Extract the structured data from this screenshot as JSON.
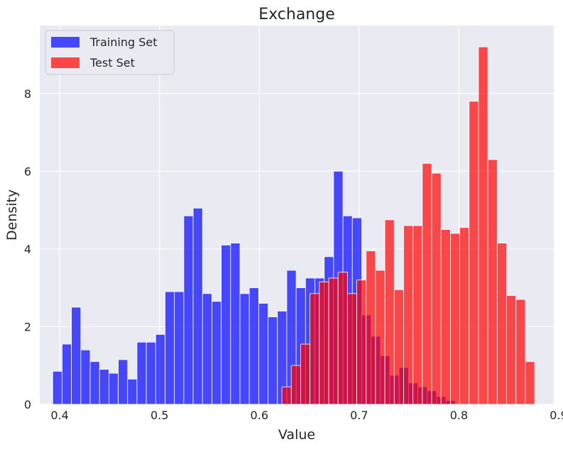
{
  "chart_data": {
    "type": "bar",
    "title": "Exchange",
    "xlabel": "Value",
    "ylabel": "Density",
    "xlim": [
      0.38,
      0.895
    ],
    "ylim": [
      0,
      9.75
    ],
    "xticks": [
      0.4,
      0.5,
      0.6,
      0.7,
      0.8,
      0.9
    ],
    "xtick_labels": [
      "0.4",
      "0.5",
      "0.6",
      "0.7",
      "0.8",
      "0.9"
    ],
    "yticks": [
      0,
      2,
      4,
      6,
      8
    ],
    "ytick_labels": [
      "0",
      "2",
      "4",
      "6",
      "8"
    ],
    "grid": true,
    "legend_position": "top-left",
    "series": [
      {
        "name": "Training Set",
        "color": "#0000ff",
        "opacity": 0.7,
        "bin_start": 0.393,
        "bin_width": 0.00938,
        "values": [
          0.85,
          1.55,
          2.5,
          1.4,
          1.1,
          0.9,
          0.8,
          1.15,
          0.65,
          1.6,
          1.6,
          1.8,
          2.9,
          2.9,
          4.85,
          5.05,
          2.85,
          2.65,
          4.1,
          4.15,
          2.85,
          3.0,
          2.6,
          2.25,
          2.4,
          3.45,
          3.0,
          3.25,
          3.25,
          3.8,
          6.0,
          4.85,
          4.8,
          2.3,
          1.75,
          1.25,
          0.75,
          0.95,
          0.55,
          0.45,
          0.35,
          0.2,
          0.1
        ]
      },
      {
        "name": "Test Set",
        "color": "#ff0000",
        "opacity": 0.7,
        "bin_start": 0.6226,
        "bin_width": 0.00938,
        "values": [
          0.45,
          1.0,
          1.55,
          2.85,
          3.15,
          3.25,
          3.4,
          2.85,
          3.2,
          3.95,
          3.45,
          4.75,
          2.95,
          4.6,
          4.6,
          6.2,
          5.95,
          4.5,
          4.4,
          4.55,
          7.8,
          9.2,
          6.3,
          4.15,
          2.8,
          2.7,
          1.1
        ]
      }
    ]
  }
}
